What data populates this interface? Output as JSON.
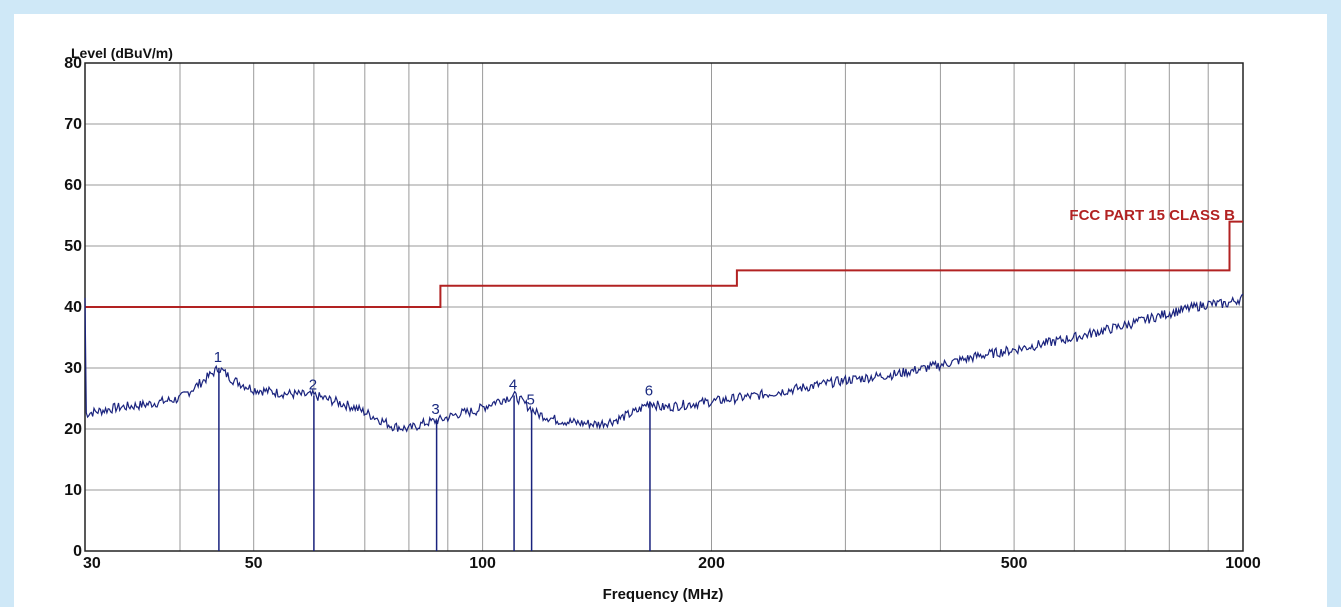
{
  "chart_data": {
    "type": "line",
    "title": "",
    "ylabel": "Level (dBuV/m)",
    "xlabel": "Frequency (MHz)",
    "x_scale": "log",
    "xlim": [
      30,
      1000
    ],
    "ylim": [
      0,
      80
    ],
    "grid": true,
    "x_ticks": [
      30,
      50,
      100,
      200,
      500,
      1000
    ],
    "x_tick_labels": [
      "30",
      "50",
      "100",
      "200",
      "500",
      "1000"
    ],
    "x_gridlines": [
      40,
      50,
      60,
      70,
      80,
      90,
      100,
      200,
      300,
      400,
      500,
      600,
      700,
      800,
      900,
      1000
    ],
    "y_ticks": [
      0,
      10,
      20,
      30,
      40,
      50,
      60,
      70,
      80
    ],
    "y_tick_labels": [
      "0",
      "10",
      "20",
      "30",
      "40",
      "50",
      "60",
      "70",
      "80"
    ],
    "limit_line": {
      "label": "FCC PART 15 CLASS B",
      "color": "#b22222",
      "points": [
        [
          30,
          40.0
        ],
        [
          88,
          40.0
        ],
        [
          88,
          43.5
        ],
        [
          216,
          43.5
        ],
        [
          216,
          46.0
        ],
        [
          960,
          46.0
        ],
        [
          960,
          54.0
        ],
        [
          1000,
          54.0
        ]
      ]
    },
    "series": [
      {
        "color": "#1a237e",
        "points": [
          [
            30,
            22.5
          ],
          [
            33,
            23.5
          ],
          [
            36,
            24.0
          ],
          [
            40,
            25.0
          ],
          [
            43,
            28.0
          ],
          [
            45,
            30.0
          ],
          [
            47,
            28.0
          ],
          [
            50,
            26.5
          ],
          [
            55,
            25.8
          ],
          [
            60,
            25.5
          ],
          [
            64,
            24.5
          ],
          [
            68,
            23.5
          ],
          [
            72,
            22.0
          ],
          [
            76,
            20.5
          ],
          [
            80,
            20.0
          ],
          [
            84,
            21.0
          ],
          [
            88,
            21.5
          ],
          [
            93,
            22.5
          ],
          [
            98,
            23.0
          ],
          [
            104,
            24.5
          ],
          [
            110,
            25.5
          ],
          [
            114,
            24.0
          ],
          [
            118,
            22.5
          ],
          [
            125,
            21.5
          ],
          [
            133,
            21.0
          ],
          [
            142,
            20.8
          ],
          [
            150,
            21.5
          ],
          [
            160,
            23.0
          ],
          [
            166,
            24.5
          ],
          [
            172,
            23.5
          ],
          [
            185,
            24.0
          ],
          [
            200,
            24.5
          ],
          [
            230,
            25.5
          ],
          [
            270,
            27.0
          ],
          [
            300,
            28.0
          ],
          [
            350,
            29.0
          ],
          [
            400,
            30.5
          ],
          [
            450,
            32.0
          ],
          [
            500,
            33.0
          ],
          [
            600,
            35.0
          ],
          [
            700,
            37.0
          ],
          [
            800,
            39.0
          ],
          [
            900,
            40.5
          ],
          [
            950,
            40.5
          ],
          [
            1000,
            41.5
          ]
        ]
      }
    ],
    "markers": [
      {
        "label": "1",
        "freq": 45.0,
        "level": 30.0
      },
      {
        "label": "2",
        "freq": 60.0,
        "level": 25.5
      },
      {
        "label": "3",
        "freq": 87.0,
        "level": 21.5
      },
      {
        "label": "4",
        "freq": 110.0,
        "level": 25.5
      },
      {
        "label": "5",
        "freq": 116.0,
        "level": 23.0
      },
      {
        "label": "6",
        "freq": 166.0,
        "level": 24.5
      }
    ]
  }
}
